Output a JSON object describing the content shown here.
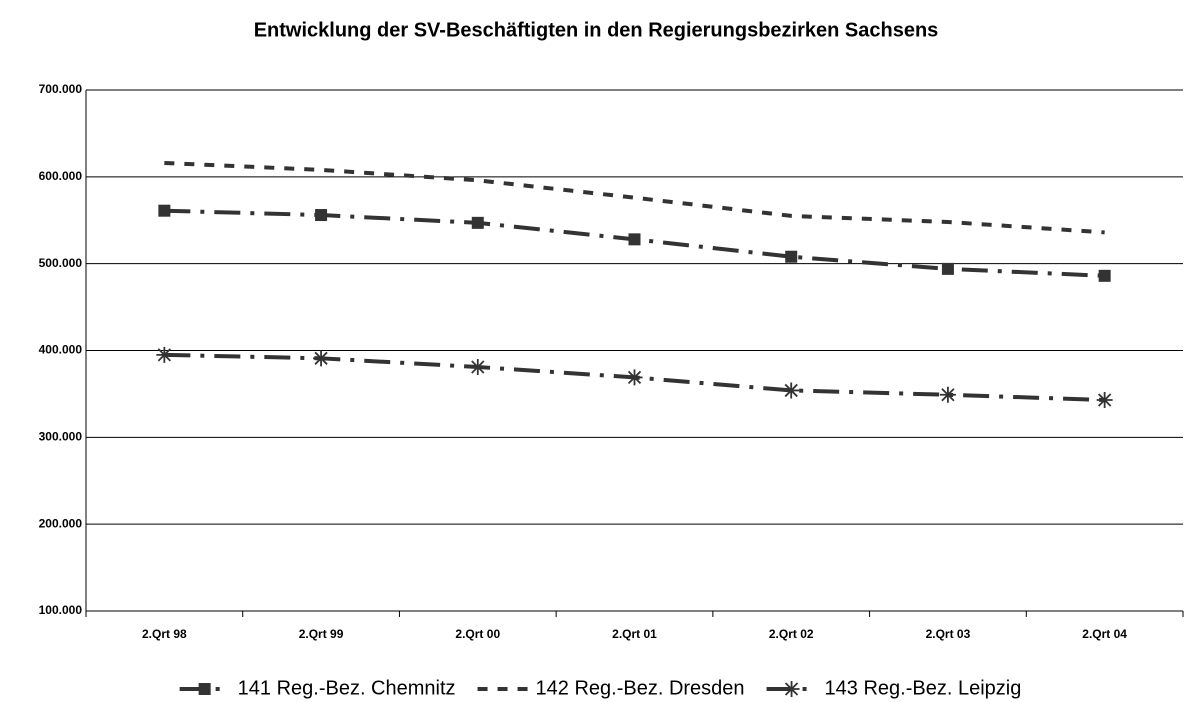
{
  "chart_data": {
    "type": "line",
    "title": "Entwicklung der SV-Beschäftigten in den Regierungsbezirken Sachsens",
    "categories": [
      "2.Qrt 98",
      "2.Qrt 99",
      "2.Qrt 00",
      "2.Qrt 01",
      "2.Qrt 02",
      "2.Qrt 03",
      "2.Qrt 04"
    ],
    "series": [
      {
        "name": "141 Reg.-Bez. Chemnitz",
        "color": "#333333",
        "marker": "square",
        "line_style": "dash-dot",
        "values": [
          561000,
          556000,
          547000,
          528000,
          508000,
          494000,
          486000
        ]
      },
      {
        "name": "142 Reg.-Bez. Dresden",
        "color": "#333333",
        "marker": "none",
        "line_style": "dashed",
        "values": [
          616000,
          608000,
          596000,
          576000,
          555000,
          548000,
          536000
        ]
      },
      {
        "name": "143 Reg.-Bez. Leipzig",
        "color": "#333333",
        "marker": "star",
        "line_style": "dash-dot",
        "values": [
          395000,
          391000,
          381000,
          369000,
          354000,
          349000,
          343000
        ]
      }
    ],
    "ylim": [
      100000,
      700000
    ],
    "yticks": [
      {
        "value": 100000,
        "label": "100.000"
      },
      {
        "value": 200000,
        "label": "200.000"
      },
      {
        "value": 300000,
        "label": "300.000"
      },
      {
        "value": 400000,
        "label": "400.000"
      },
      {
        "value": 500000,
        "label": "500.000"
      },
      {
        "value": 600000,
        "label": "600.000"
      },
      {
        "value": 700000,
        "label": "700.000"
      }
    ],
    "grid": true,
    "legend": "bottom"
  }
}
